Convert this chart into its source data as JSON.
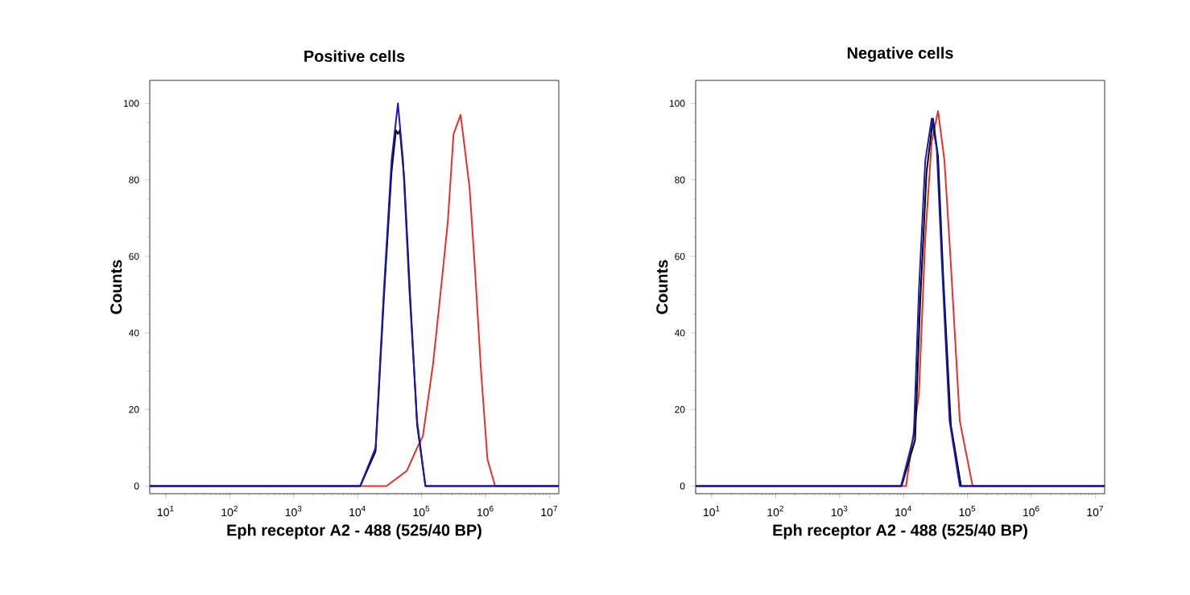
{
  "chart_data": [
    {
      "type": "line",
      "title": "Positive cells",
      "xlabel": "Eph receptor A2 - 488  (525/40 BP)",
      "ylabel": "Counts",
      "log": "x",
      "xlim": [
        5.6,
        14000000
      ],
      "ylim": [
        -2,
        106
      ],
      "xticks": [
        {
          "value": 10,
          "label": "10$^{1}$"
        },
        {
          "value": 100,
          "label": "10$^{2}$"
        },
        {
          "value": 1000,
          "label": "10$^{3}$"
        },
        {
          "value": 10000,
          "label": "10$^{4}$"
        },
        {
          "value": 100000,
          "label": "10$^{5}$"
        },
        {
          "value": 1000000,
          "label": "10$^{6}$"
        },
        {
          "value": 10000000,
          "label": "10$^{7}$"
        }
      ],
      "yticks": [
        0,
        20,
        40,
        60,
        80,
        100
      ],
      "series": [
        {
          "color": "#e8302a",
          "x": [
            5.6,
            28180,
            58880,
            85110,
            104700,
            151400,
            199500,
            257000,
            316200,
            407400,
            467700,
            562300,
            676100,
            851100,
            1072000,
            1413000,
            14000000
          ],
          "values": [
            0,
            0,
            4,
            10,
            13,
            32,
            51,
            69,
            92,
            97,
            89,
            78,
            58,
            30,
            7,
            0,
            0
          ]
        },
        {
          "color": "#000000",
          "x": [
            5.6,
            10960,
            19050,
            25700,
            33880,
            39810,
            42660,
            45710,
            53700,
            66070,
            85110,
            114800,
            14000000
          ],
          "values": [
            0,
            0,
            9,
            49,
            82,
            93,
            92,
            93,
            80,
            50,
            16,
            0,
            0
          ]
        },
        {
          "color": "#1a1ab8",
          "x": [
            5.6,
            10960,
            19050,
            25700,
            33880,
            42660,
            51290,
            64570,
            85110,
            114800,
            14000000
          ],
          "values": [
            0,
            0,
            10,
            51,
            85,
            100,
            85,
            51,
            17,
            0,
            0
          ]
        }
      ]
    },
    {
      "type": "line",
      "title": "Negative cells",
      "xlabel": "Eph receptor A2 - 488  (525/40 BP)",
      "ylabel": "Counts",
      "log": "x",
      "xlim": [
        5.6,
        14000000
      ],
      "ylim": [
        -2,
        106
      ],
      "xticks": [
        {
          "value": 10,
          "label": "10$^{1}$"
        },
        {
          "value": 100,
          "label": "10$^{2}$"
        },
        {
          "value": 1000,
          "label": "10$^{3}$"
        },
        {
          "value": 10000,
          "label": "10$^{4}$"
        },
        {
          "value": 100000,
          "label": "10$^{5}$"
        },
        {
          "value": 1000000,
          "label": "10$^{6}$"
        },
        {
          "value": 10000000,
          "label": "10$^{7}$"
        }
      ],
      "yticks": [
        0,
        20,
        40,
        60,
        80,
        100
      ],
      "series": [
        {
          "color": "#e8302a",
          "x": [
            5.6,
            10960,
            17380,
            21880,
            27540,
            34670,
            43650,
            54950,
            75860,
            120200,
            14000000
          ],
          "values": [
            0,
            0,
            24,
            65,
            90,
            98,
            85,
            58,
            17,
            0,
            0
          ]
        },
        {
          "color": "#000000",
          "x": [
            5.6,
            9330,
            15140,
            18200,
            22910,
            28840,
            34670,
            41690,
            54950,
            79430,
            14000000
          ],
          "values": [
            0,
            0,
            12,
            48,
            82,
            96,
            86,
            55,
            16,
            0,
            0
          ]
        },
        {
          "color": "#1a1ab8",
          "x": [
            5.6,
            9120,
            14450,
            17380,
            21880,
            27540,
            33110,
            39810,
            52480,
            75860,
            14000000
          ],
          "values": [
            0,
            0,
            13,
            51,
            85,
            96,
            88,
            58,
            17,
            0,
            0
          ]
        }
      ]
    }
  ]
}
